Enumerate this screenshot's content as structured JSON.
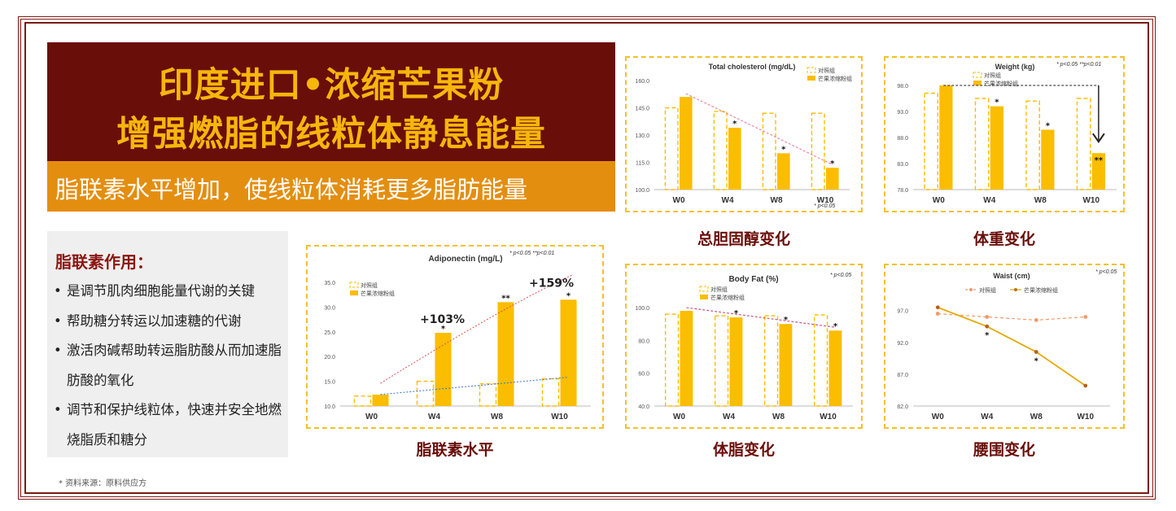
{
  "banner": {
    "title_line1": "印度进口•浓缩芒果粉",
    "title_line2": "增强燃脂的线粒体静息能量",
    "subtitle": "脂联素水平增加，使线粒体消耗更多脂肪能量"
  },
  "info": {
    "title": "脂联素作用：",
    "items": [
      "是调节肌肉细胞能量代谢的关键",
      "帮助糖分转运以加速糖的代谢",
      "激活肉碱帮助转运脂肪酸从而加速脂肪酸的氧化",
      "调节和保护线粒体，快速并安全地燃烧脂质和糖分"
    ]
  },
  "footnote": "* 资料来源：原料供应方",
  "colors": {
    "dark_red": "#6a0e0a",
    "orange": "#e48e10",
    "gold": "#f7b60a",
    "bar": "#fbbd00",
    "placebo_line": "#f09a6a",
    "mango_line": "#e6a800"
  },
  "captions": {
    "adiponectin": "脂联素水平",
    "cholesterol": "总胆固醇变化",
    "weight": "体重变化",
    "bodyfat": "体脂变化",
    "waist": "腰围变化"
  },
  "chart_data": [
    {
      "id": "adiponectin",
      "type": "bar",
      "title": "Adiponectin (mg/L)",
      "categories": [
        "W0",
        "W4",
        "W8",
        "W10"
      ],
      "series": [
        {
          "name": "对照组",
          "style": "dashed",
          "values": [
            12.0,
            15.0,
            14.5,
            15.5
          ]
        },
        {
          "name": "芒果浓缩粉组",
          "style": "solid",
          "values": [
            12.3,
            24.8,
            31.0,
            31.5
          ]
        }
      ],
      "yticks": [
        "35.0",
        "30.0",
        "25.0",
        "20.0",
        "15.0",
        "10.0"
      ],
      "ylim": [
        10,
        35
      ],
      "markers": [
        "",
        "*",
        "**",
        "*"
      ],
      "annotations": [
        "+103%",
        "+159%"
      ],
      "significance": [
        "* p<0.05",
        "**p<0.01"
      ]
    },
    {
      "id": "cholesterol",
      "type": "bar",
      "title": "Total cholesterol (mg/dL)",
      "categories": [
        "W0",
        "W4",
        "W8",
        "W10"
      ],
      "series": [
        {
          "name": "对照组",
          "style": "dashed",
          "values": [
            145,
            143,
            142,
            142
          ]
        },
        {
          "name": "芒果浓缩粉组",
          "style": "solid",
          "values": [
            151,
            134,
            120,
            112
          ]
        }
      ],
      "yticks": [
        "160.0",
        "145.0",
        "130.0",
        "115.0",
        "100.0"
      ],
      "ylim": [
        100,
        160
      ],
      "markers": [
        "",
        "*",
        "*",
        "*"
      ],
      "significance": [
        "* p<0.05"
      ]
    },
    {
      "id": "weight",
      "type": "bar",
      "title": "Weight (kg)",
      "categories": [
        "W0",
        "W4",
        "W8",
        "W10"
      ],
      "series": [
        {
          "name": "对照组",
          "style": "dashed",
          "values": [
            96.5,
            95.5,
            95.0,
            95.5
          ]
        },
        {
          "name": "芒果浓缩粉组",
          "style": "solid",
          "values": [
            98.0,
            94.0,
            89.5,
            85.0
          ]
        }
      ],
      "yticks": [
        "98.0",
        "93.0",
        "88.0",
        "83.0",
        "78.0"
      ],
      "ylim": [
        78,
        98
      ],
      "markers": [
        "",
        "*",
        "*",
        "**"
      ],
      "significance": [
        "* p<0.05",
        "**p<0.01"
      ]
    },
    {
      "id": "bodyfat",
      "type": "bar",
      "title": "Body Fat (%)",
      "categories": [
        "W0",
        "W4",
        "W8",
        "W10"
      ],
      "series": [
        {
          "name": "对照组",
          "style": "dashed",
          "values": [
            96.0,
            95.0,
            95.0,
            95.5
          ]
        },
        {
          "name": "芒果浓缩粉组",
          "style": "solid",
          "values": [
            98.0,
            94.0,
            90.0,
            86.0
          ]
        }
      ],
      "yticks": [
        "100.0",
        "80.0",
        "60.0",
        "40.0"
      ],
      "ylim": [
        40,
        100
      ],
      "markers": [
        "",
        "*",
        "*",
        "*"
      ],
      "significance": [
        "* p<0.05"
      ]
    },
    {
      "id": "waist",
      "type": "line",
      "title": "Waist (cm)",
      "categories": [
        "W0",
        "W4",
        "W8",
        "W10"
      ],
      "series": [
        {
          "name": "对照组",
          "style": "dashed",
          "values": [
            96.5,
            96.0,
            95.5,
            96.0
          ]
        },
        {
          "name": "芒果浓缩粉组",
          "style": "solid",
          "values": [
            97.5,
            94.5,
            90.5,
            85.2
          ]
        }
      ],
      "yticks": [
        "97.0",
        "92.0",
        "87.0",
        "82.0"
      ],
      "ylim": [
        82,
        99
      ],
      "markers": [
        "",
        "*",
        "*",
        ""
      ],
      "significance": [
        "* p<0.05"
      ]
    }
  ]
}
